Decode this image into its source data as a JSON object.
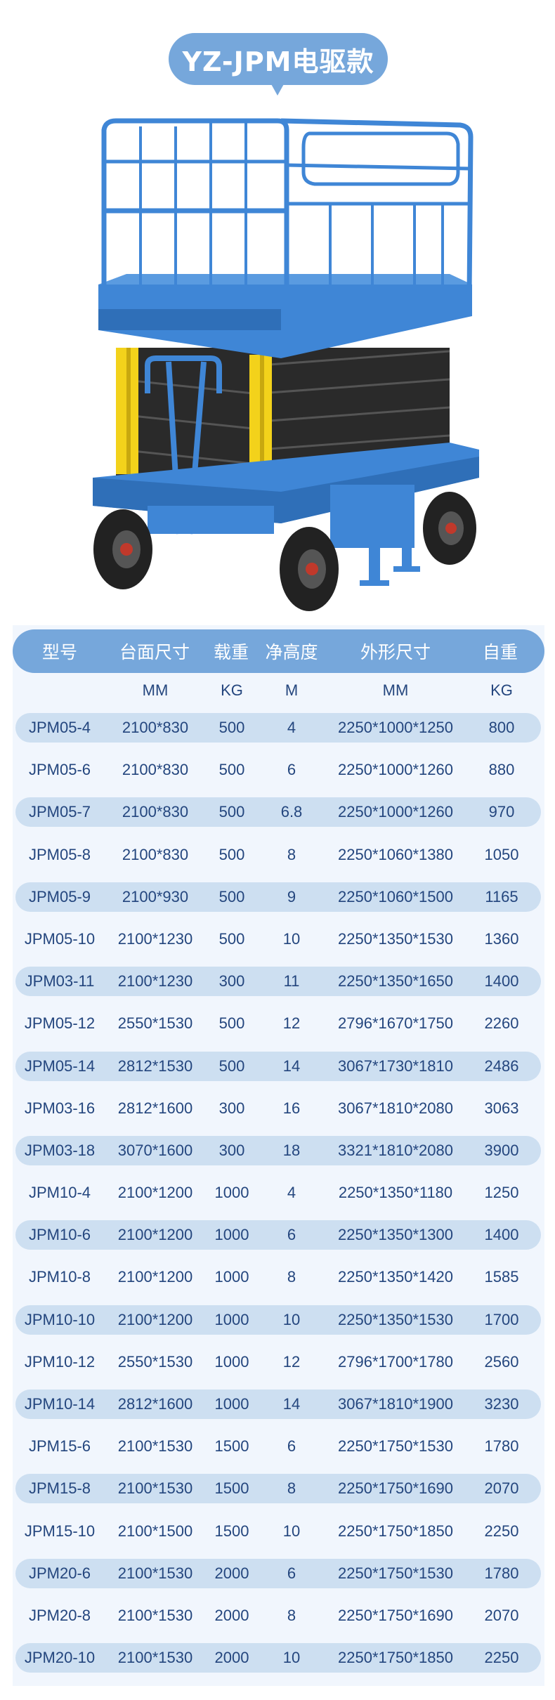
{
  "title": "YZ-JPM电驱款",
  "colors": {
    "accent": "#76a7db",
    "row_shade": "#cddff1",
    "text": "#24467e",
    "panel": "#f1f6fd",
    "machine_blue": "#3f86d6",
    "machine_yellow": "#f3d21b"
  },
  "product_image": "scissor-lift",
  "table": {
    "headers": [
      "型号",
      "台面尺寸",
      "载重",
      "净高度",
      "外形尺寸",
      "自重"
    ],
    "units": [
      "",
      "MM",
      "KG",
      "M",
      "MM",
      "KG"
    ],
    "rows": [
      [
        "JPM05-4",
        "2100*830",
        "500",
        "4",
        "2250*1000*1250",
        "800"
      ],
      [
        "JPM05-6",
        "2100*830",
        "500",
        "6",
        "2250*1000*1260",
        "880"
      ],
      [
        "JPM05-7",
        "2100*830",
        "500",
        "6.8",
        "2250*1000*1260",
        "970"
      ],
      [
        "JPM05-8",
        "2100*830",
        "500",
        "8",
        "2250*1060*1380",
        "1050"
      ],
      [
        "JPM05-9",
        "2100*930",
        "500",
        "9",
        "2250*1060*1500",
        "1165"
      ],
      [
        "JPM05-10",
        "2100*1230",
        "500",
        "10",
        "2250*1350*1530",
        "1360"
      ],
      [
        "JPM03-11",
        "2100*1230",
        "300",
        "11",
        "2250*1350*1650",
        "1400"
      ],
      [
        "JPM05-12",
        "2550*1530",
        "500",
        "12",
        "2796*1670*1750",
        "2260"
      ],
      [
        "JPM05-14",
        "2812*1530",
        "500",
        "14",
        "3067*1730*1810",
        "2486"
      ],
      [
        "JPM03-16",
        "2812*1600",
        "300",
        "16",
        "3067*1810*2080",
        "3063"
      ],
      [
        "JPM03-18",
        "3070*1600",
        "300",
        "18",
        "3321*1810*2080",
        "3900"
      ],
      [
        "JPM10-4",
        "2100*1200",
        "1000",
        "4",
        "2250*1350*1180",
        "1250"
      ],
      [
        "JPM10-6",
        "2100*1200",
        "1000",
        "6",
        "2250*1350*1300",
        "1400"
      ],
      [
        "JPM10-8",
        "2100*1200",
        "1000",
        "8",
        "2250*1350*1420",
        "1585"
      ],
      [
        "JPM10-10",
        "2100*1200",
        "1000",
        "10",
        "2250*1350*1530",
        "1700"
      ],
      [
        "JPM10-12",
        "2550*1530",
        "1000",
        "12",
        "2796*1700*1780",
        "2560"
      ],
      [
        "JPM10-14",
        "2812*1600",
        "1000",
        "14",
        "3067*1810*1900",
        "3230"
      ],
      [
        "JPM15-6",
        "2100*1530",
        "1500",
        "6",
        "2250*1750*1530",
        "1780"
      ],
      [
        "JPM15-8",
        "2100*1530",
        "1500",
        "8",
        "2250*1750*1690",
        "2070"
      ],
      [
        "JPM15-10",
        "2100*1500",
        "1500",
        "10",
        "2250*1750*1850",
        "2250"
      ],
      [
        "JPM20-6",
        "2100*1530",
        "2000",
        "6",
        "2250*1750*1530",
        "1780"
      ],
      [
        "JPM20-8",
        "2100*1530",
        "2000",
        "8",
        "2250*1750*1690",
        "2070"
      ],
      [
        "JPM20-10",
        "2100*1530",
        "2000",
        "10",
        "2250*1750*1850",
        "2250"
      ]
    ]
  }
}
